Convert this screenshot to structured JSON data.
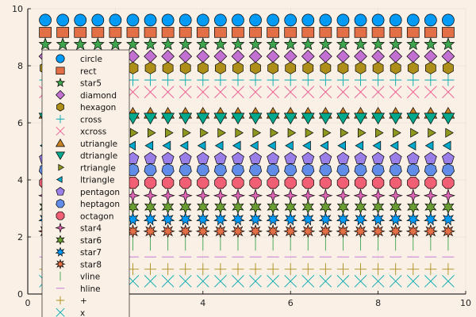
{
  "chart_data": {
    "type": "scatter",
    "title": "",
    "xlabel": "",
    "ylabel": "",
    "xlim": [
      0,
      10
    ],
    "ylim": [
      0,
      10
    ],
    "xticks": [
      "0",
      "2",
      "4",
      "6",
      "8",
      "10"
    ],
    "yticks": [
      "0",
      "2",
      "4",
      "6",
      "8",
      "10"
    ],
    "grid": true,
    "legend_position": "top-left",
    "x": [
      0.4,
      0.8,
      1.2,
      1.6,
      2.0,
      2.4,
      2.8,
      3.2,
      3.6,
      4.0,
      4.4,
      4.8,
      5.2,
      5.6,
      6.0,
      6.4,
      6.8,
      7.2,
      7.6,
      8.0,
      8.4,
      8.8,
      9.2,
      9.6
    ],
    "series": [
      {
        "name": "circle",
        "marker": "circle",
        "color": "#009af9",
        "y": 9.6
      },
      {
        "name": "rect",
        "marker": "rect",
        "color": "#e26f46",
        "y": 9.17
      },
      {
        "name": "star5",
        "marker": "star5",
        "color": "#3ea44e",
        "y": 8.75
      },
      {
        "name": "diamond",
        "marker": "diamond",
        "color": "#c271d2",
        "y": 8.33
      },
      {
        "name": "hexagon",
        "marker": "hexagon",
        "color": "#ac8e18",
        "y": 7.92
      },
      {
        "name": "cross",
        "marker": "cross",
        "color": "#00a9ad",
        "y": 7.5
      },
      {
        "name": "xcross",
        "marker": "xcross",
        "color": "#ed5e93",
        "y": 7.08
      },
      {
        "name": "utriangle",
        "marker": "utriangle",
        "color": "#c68225",
        "y": 6.33
      },
      {
        "name": "dtriangle",
        "marker": "dtriangle",
        "color": "#00a98d",
        "y": 6.17
      },
      {
        "name": "rtriangle",
        "marker": "rtriangle",
        "color": "#8e971e",
        "y": 5.65
      },
      {
        "name": "ltriangle",
        "marker": "ltriangle",
        "color": "#00a8cb",
        "y": 5.2
      },
      {
        "name": "pentagon",
        "marker": "pentagon",
        "color": "#9b7fe9",
        "y": 4.75
      },
      {
        "name": "heptagon",
        "marker": "heptagon",
        "color": "#618de9",
        "y": 4.35
      },
      {
        "name": "octagon",
        "marker": "octagon",
        "color": "#f05f73",
        "y": 3.9
      },
      {
        "name": "star4",
        "marker": "star4",
        "color": "#dd64b5",
        "y": 3.45
      },
      {
        "name": "star6",
        "marker": "star6",
        "color": "#6b9e32",
        "y": 3.05
      },
      {
        "name": "star7",
        "marker": "star7",
        "color": "#009af9",
        "y": 2.62
      },
      {
        "name": "star8",
        "marker": "star8",
        "color": "#e26f46",
        "y": 2.2
      },
      {
        "name": "vline",
        "marker": "vline",
        "color": "#3ea44e",
        "y": 1.75
      },
      {
        "name": "hline",
        "marker": "hline",
        "color": "#c271d2",
        "y": 1.3
      },
      {
        "name": "+",
        "marker": "plus",
        "color": "#ac8e18",
        "y": 0.87
      },
      {
        "name": "x",
        "marker": "x",
        "color": "#00a9ad",
        "y": 0.45
      }
    ]
  }
}
